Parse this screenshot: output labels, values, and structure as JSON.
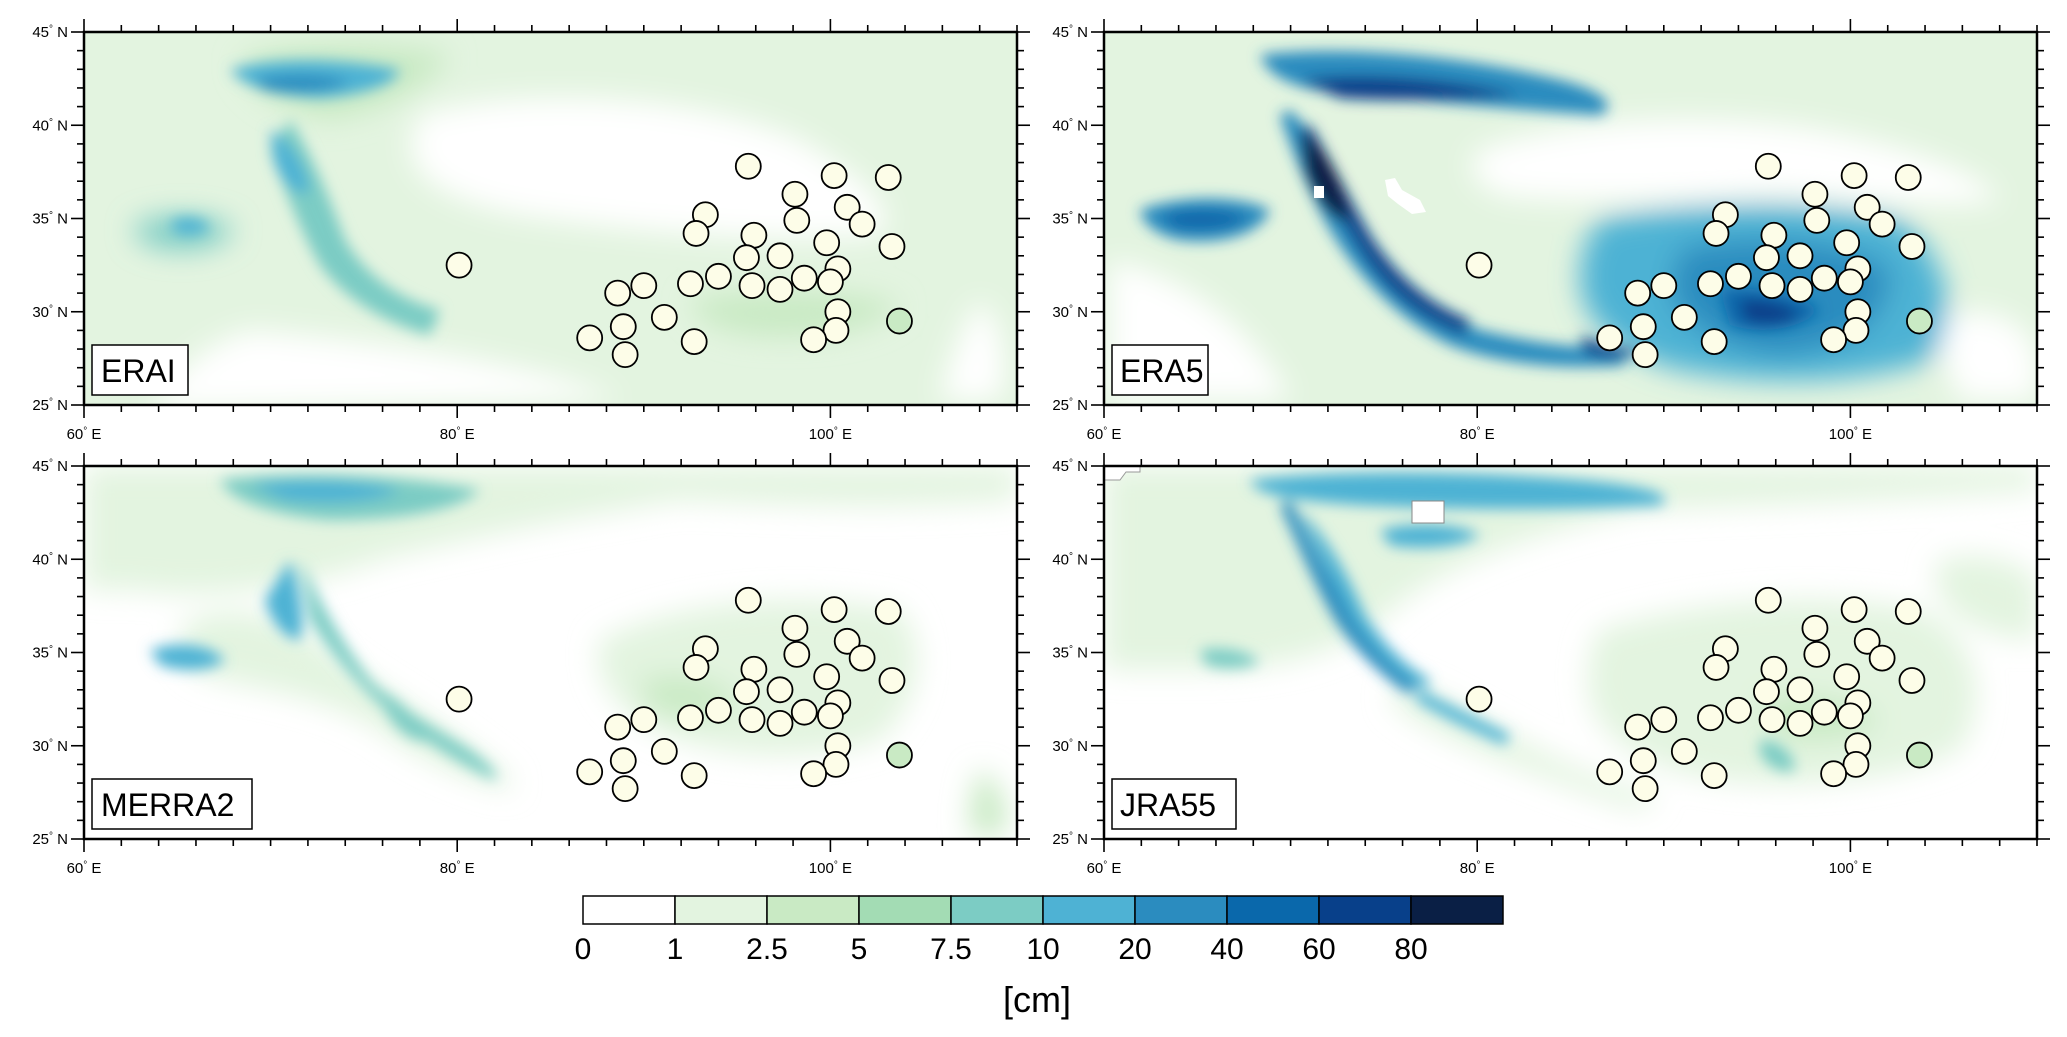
{
  "figure": {
    "lon_range": [
      60,
      110
    ],
    "lat_range": [
      25,
      45
    ],
    "lon_ticks": [
      {
        "value": 60,
        "label": "60°E"
      },
      {
        "value": 80,
        "label": "80°E"
      },
      {
        "value": 100,
        "label": "100°E"
      }
    ],
    "lat_ticks": [
      {
        "value": 25,
        "label": "25°N"
      },
      {
        "value": 30,
        "label": "30°N"
      },
      {
        "value": 35,
        "label": "35°N"
      },
      {
        "value": 40,
        "label": "40°N"
      },
      {
        "value": 45,
        "label": "45°N"
      }
    ]
  },
  "panels": [
    {
      "id": "erai",
      "label": "ERAI"
    },
    {
      "id": "era5",
      "label": "ERA5"
    },
    {
      "id": "merra2",
      "label": "MERRA2"
    },
    {
      "id": "jra55",
      "label": "JRA55"
    }
  ],
  "colorbar": {
    "unit": "[cm]",
    "levels": [
      "0",
      "1",
      "2.5",
      "5",
      "7.5",
      "10",
      "20",
      "40",
      "60",
      "80"
    ],
    "colors": [
      "#ffffff",
      "#e3f4e0",
      "#c9eac4",
      "#a3dcb4",
      "#7cccc4",
      "#4eb2d4",
      "#2b8cbf",
      "#0a68ab",
      "#08408a",
      "#0a1f45"
    ]
  },
  "stations": [
    {
      "lon": 80.1,
      "lat": 32.5,
      "v": 1
    },
    {
      "lon": 95.6,
      "lat": 37.8,
      "v": 1
    },
    {
      "lon": 100.2,
      "lat": 37.3,
      "v": 1
    },
    {
      "lon": 103.1,
      "lat": 37.2,
      "v": 1
    },
    {
      "lon": 98.1,
      "lat": 36.3,
      "v": 1
    },
    {
      "lon": 93.3,
      "lat": 35.2,
      "v": 1
    },
    {
      "lon": 100.9,
      "lat": 35.6,
      "v": 1
    },
    {
      "lon": 98.2,
      "lat": 34.9,
      "v": 1
    },
    {
      "lon": 101.7,
      "lat": 34.7,
      "v": 1
    },
    {
      "lon": 92.8,
      "lat": 34.2,
      "v": 1
    },
    {
      "lon": 95.9,
      "lat": 34.1,
      "v": 1
    },
    {
      "lon": 99.8,
      "lat": 33.7,
      "v": 1
    },
    {
      "lon": 103.3,
      "lat": 33.5,
      "v": 1
    },
    {
      "lon": 97.3,
      "lat": 33.0,
      "v": 1
    },
    {
      "lon": 95.5,
      "lat": 32.9,
      "v": 1
    },
    {
      "lon": 100.4,
      "lat": 32.3,
      "v": 1
    },
    {
      "lon": 94.0,
      "lat": 31.9,
      "v": 1
    },
    {
      "lon": 98.6,
      "lat": 31.8,
      "v": 1
    },
    {
      "lon": 100.0,
      "lat": 31.6,
      "v": 1
    },
    {
      "lon": 92.5,
      "lat": 31.5,
      "v": 1
    },
    {
      "lon": 95.8,
      "lat": 31.4,
      "v": 1
    },
    {
      "lon": 90.0,
      "lat": 31.4,
      "v": 1
    },
    {
      "lon": 97.3,
      "lat": 31.2,
      "v": 1
    },
    {
      "lon": 88.6,
      "lat": 31.0,
      "v": 1
    },
    {
      "lon": 100.4,
      "lat": 30.0,
      "v": 1
    },
    {
      "lon": 91.1,
      "lat": 29.7,
      "v": 1
    },
    {
      "lon": 88.9,
      "lat": 29.2,
      "v": 1
    },
    {
      "lon": 100.3,
      "lat": 29.0,
      "v": 1
    },
    {
      "lon": 87.1,
      "lat": 28.6,
      "v": 1
    },
    {
      "lon": 92.7,
      "lat": 28.4,
      "v": 1
    },
    {
      "lon": 99.1,
      "lat": 28.5,
      "v": 1
    },
    {
      "lon": 89.0,
      "lat": 27.7,
      "v": 1
    },
    {
      "lon": 103.7,
      "lat": 29.5,
      "v": 3
    }
  ]
}
